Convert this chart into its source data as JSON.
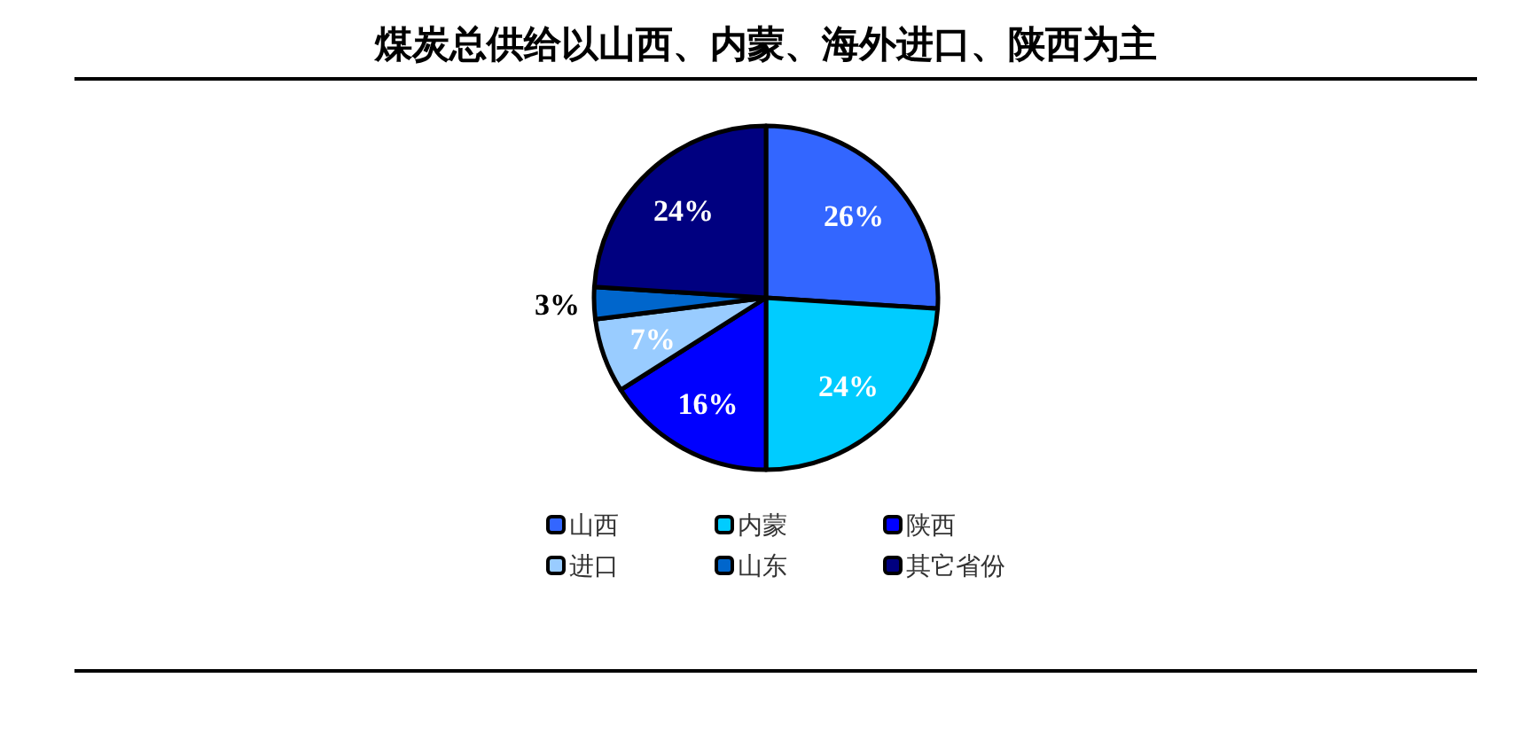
{
  "chart_data": {
    "type": "pie",
    "title": "煤炭总供给以山西、内蒙、海外进口、陕西为主",
    "categories": [
      "山西",
      "内蒙",
      "陕西",
      "进口",
      "山东",
      "其它省份"
    ],
    "values": [
      26,
      24,
      16,
      7,
      3,
      24
    ],
    "colors": [
      "#3366ff",
      "#00ccff",
      "#0000ff",
      "#99ccff",
      "#0066cc",
      "#000080"
    ],
    "value_labels": [
      "26%",
      "24%",
      "16%",
      "7%",
      "3%",
      "24%"
    ],
    "legend": "bottom"
  }
}
